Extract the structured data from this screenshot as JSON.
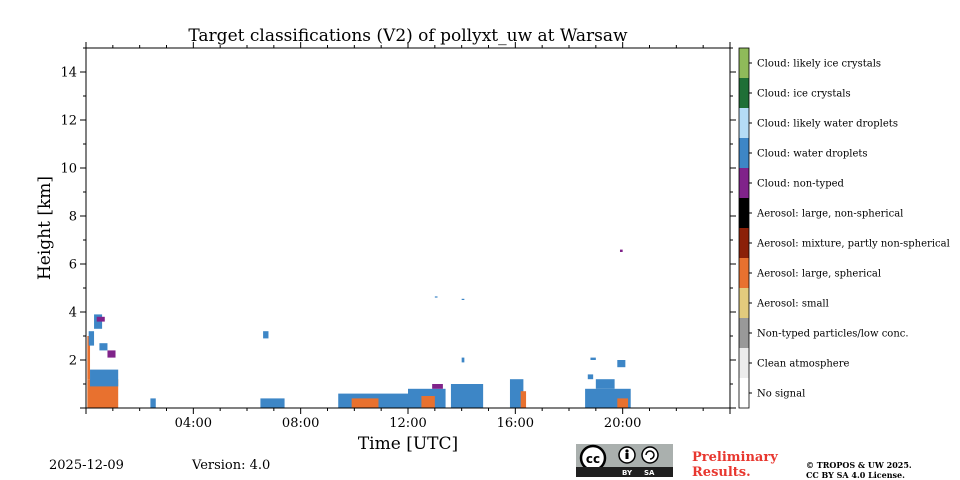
{
  "chart_data": {
    "type": "heatmap",
    "title": "Target classifications (V2) of pollyxt_uw at Warsaw",
    "xlabel": "Time [UTC]",
    "ylabel": "Height [km]",
    "x_range_hours": [
      0,
      24
    ],
    "y_range_km": [
      0,
      15
    ],
    "x_ticks": [
      {
        "hour": 4,
        "label": "04:00"
      },
      {
        "hour": 8,
        "label": "08:00"
      },
      {
        "hour": 12,
        "label": "12:00"
      },
      {
        "hour": 16,
        "label": "16:00"
      },
      {
        "hour": 20,
        "label": "20:00"
      }
    ],
    "y_ticks": [
      {
        "km": 2,
        "label": "2"
      },
      {
        "km": 4,
        "label": "4"
      },
      {
        "km": 6,
        "label": "6"
      },
      {
        "km": 8,
        "label": "8"
      },
      {
        "km": 10,
        "label": "10"
      },
      {
        "km": 12,
        "label": "12"
      },
      {
        "km": 14,
        "label": "14"
      }
    ],
    "classes": [
      {
        "id": 11,
        "label": "Cloud: likely ice crystals",
        "color": "#8fba5a"
      },
      {
        "id": 10,
        "label": "Cloud: ice crystals",
        "color": "#1f6f36"
      },
      {
        "id": 9,
        "label": "Cloud: likely water droplets",
        "color": "#b5dcf6"
      },
      {
        "id": 8,
        "label": "Cloud: water droplets",
        "color": "#3d86c6"
      },
      {
        "id": 7,
        "label": "Cloud: non-typed",
        "color": "#80238a"
      },
      {
        "id": 6,
        "label": "Aerosol: large, non-spherical",
        "color": "#000000"
      },
      {
        "id": 5,
        "label": "Aerosol: mixture, partly non-spherical",
        "color": "#8b2008"
      },
      {
        "id": 4,
        "label": "Aerosol: large, spherical",
        "color": "#e8712f"
      },
      {
        "id": 3,
        "label": "Aerosol: small",
        "color": "#e3cb7d"
      },
      {
        "id": 2,
        "label": "Non-typed particles/low conc.",
        "color": "#999999"
      },
      {
        "id": 1,
        "label": "Clean atmosphere",
        "color": "#ececec"
      },
      {
        "id": 0,
        "label": "No signal",
        "color": "#ffffff"
      }
    ],
    "regions": [
      {
        "cls": 4,
        "t0": 0.05,
        "t1": 1.2,
        "h0": 0.0,
        "h1": 1.2
      },
      {
        "cls": 4,
        "t0": 0.05,
        "t1": 0.15,
        "h0": 1.2,
        "h1": 3.0
      },
      {
        "cls": 8,
        "t0": 0.15,
        "t1": 1.2,
        "h0": 0.9,
        "h1": 1.6
      },
      {
        "cls": 8,
        "t0": 0.1,
        "t1": 0.3,
        "h0": 2.6,
        "h1": 3.2
      },
      {
        "cls": 8,
        "t0": 0.3,
        "t1": 0.6,
        "h0": 3.3,
        "h1": 3.9
      },
      {
        "cls": 7,
        "t0": 0.4,
        "t1": 0.7,
        "h0": 3.6,
        "h1": 3.8
      },
      {
        "cls": 8,
        "t0": 0.5,
        "t1": 0.8,
        "h0": 2.4,
        "h1": 2.7
      },
      {
        "cls": 7,
        "t0": 0.8,
        "t1": 1.1,
        "h0": 2.1,
        "h1": 2.4
      },
      {
        "cls": 8,
        "t0": 2.4,
        "t1": 2.6,
        "h0": 0.0,
        "h1": 0.4
      },
      {
        "cls": 8,
        "t0": 6.5,
        "t1": 7.4,
        "h0": 0.0,
        "h1": 0.4
      },
      {
        "cls": 8,
        "t0": 6.6,
        "t1": 6.8,
        "h0": 2.9,
        "h1": 3.2
      },
      {
        "cls": 8,
        "t0": 9.4,
        "t1": 12.0,
        "h0": 0.0,
        "h1": 0.6
      },
      {
        "cls": 4,
        "t0": 9.9,
        "t1": 10.9,
        "h0": 0.0,
        "h1": 0.4
      },
      {
        "cls": 8,
        "t0": 12.0,
        "t1": 13.4,
        "h0": 0.0,
        "h1": 0.8
      },
      {
        "cls": 4,
        "t0": 12.5,
        "t1": 13.0,
        "h0": 0.0,
        "h1": 0.5
      },
      {
        "cls": 7,
        "t0": 12.9,
        "t1": 13.3,
        "h0": 0.8,
        "h1": 1.0
      },
      {
        "cls": 8,
        "t0": 13.6,
        "t1": 14.8,
        "h0": 0.0,
        "h1": 1.0
      },
      {
        "cls": 8,
        "t0": 14.0,
        "t1": 14.1,
        "h0": 1.9,
        "h1": 2.1
      },
      {
        "cls": 8,
        "t0": 15.8,
        "t1": 16.3,
        "h0": 0.0,
        "h1": 1.2
      },
      {
        "cls": 4,
        "t0": 16.2,
        "t1": 16.4,
        "h0": 0.0,
        "h1": 0.7
      },
      {
        "cls": 8,
        "t0": 18.6,
        "t1": 20.3,
        "h0": 0.0,
        "h1": 0.8
      },
      {
        "cls": 4,
        "t0": 19.8,
        "t1": 20.2,
        "h0": 0.0,
        "h1": 0.4
      },
      {
        "cls": 8,
        "t0": 19.0,
        "t1": 19.7,
        "h0": 0.8,
        "h1": 1.2
      },
      {
        "cls": 8,
        "t0": 18.7,
        "t1": 18.9,
        "h0": 1.2,
        "h1": 1.4
      },
      {
        "cls": 8,
        "t0": 19.8,
        "t1": 20.1,
        "h0": 1.7,
        "h1": 2.0
      },
      {
        "cls": 8,
        "t0": 18.8,
        "t1": 19.0,
        "h0": 2.0,
        "h1": 2.1
      },
      {
        "cls": 7,
        "t0": 19.9,
        "t1": 20.0,
        "h0": 6.5,
        "h1": 6.6
      },
      {
        "cls": 8,
        "t0": 13.0,
        "t1": 13.1,
        "h0": 4.6,
        "h1": 4.65
      },
      {
        "cls": 8,
        "t0": 14.0,
        "t1": 14.1,
        "h0": 4.5,
        "h1": 4.55
      }
    ]
  },
  "footer": {
    "date": "2025-12-09",
    "version": "Version: 4.0",
    "preliminary": "Preliminary",
    "results": "Results.",
    "copyright": "© TROPOS & UW 2025.",
    "license": "CC BY SA 4.0 License.",
    "badge_by": "BY",
    "badge_sa": "SA"
  }
}
